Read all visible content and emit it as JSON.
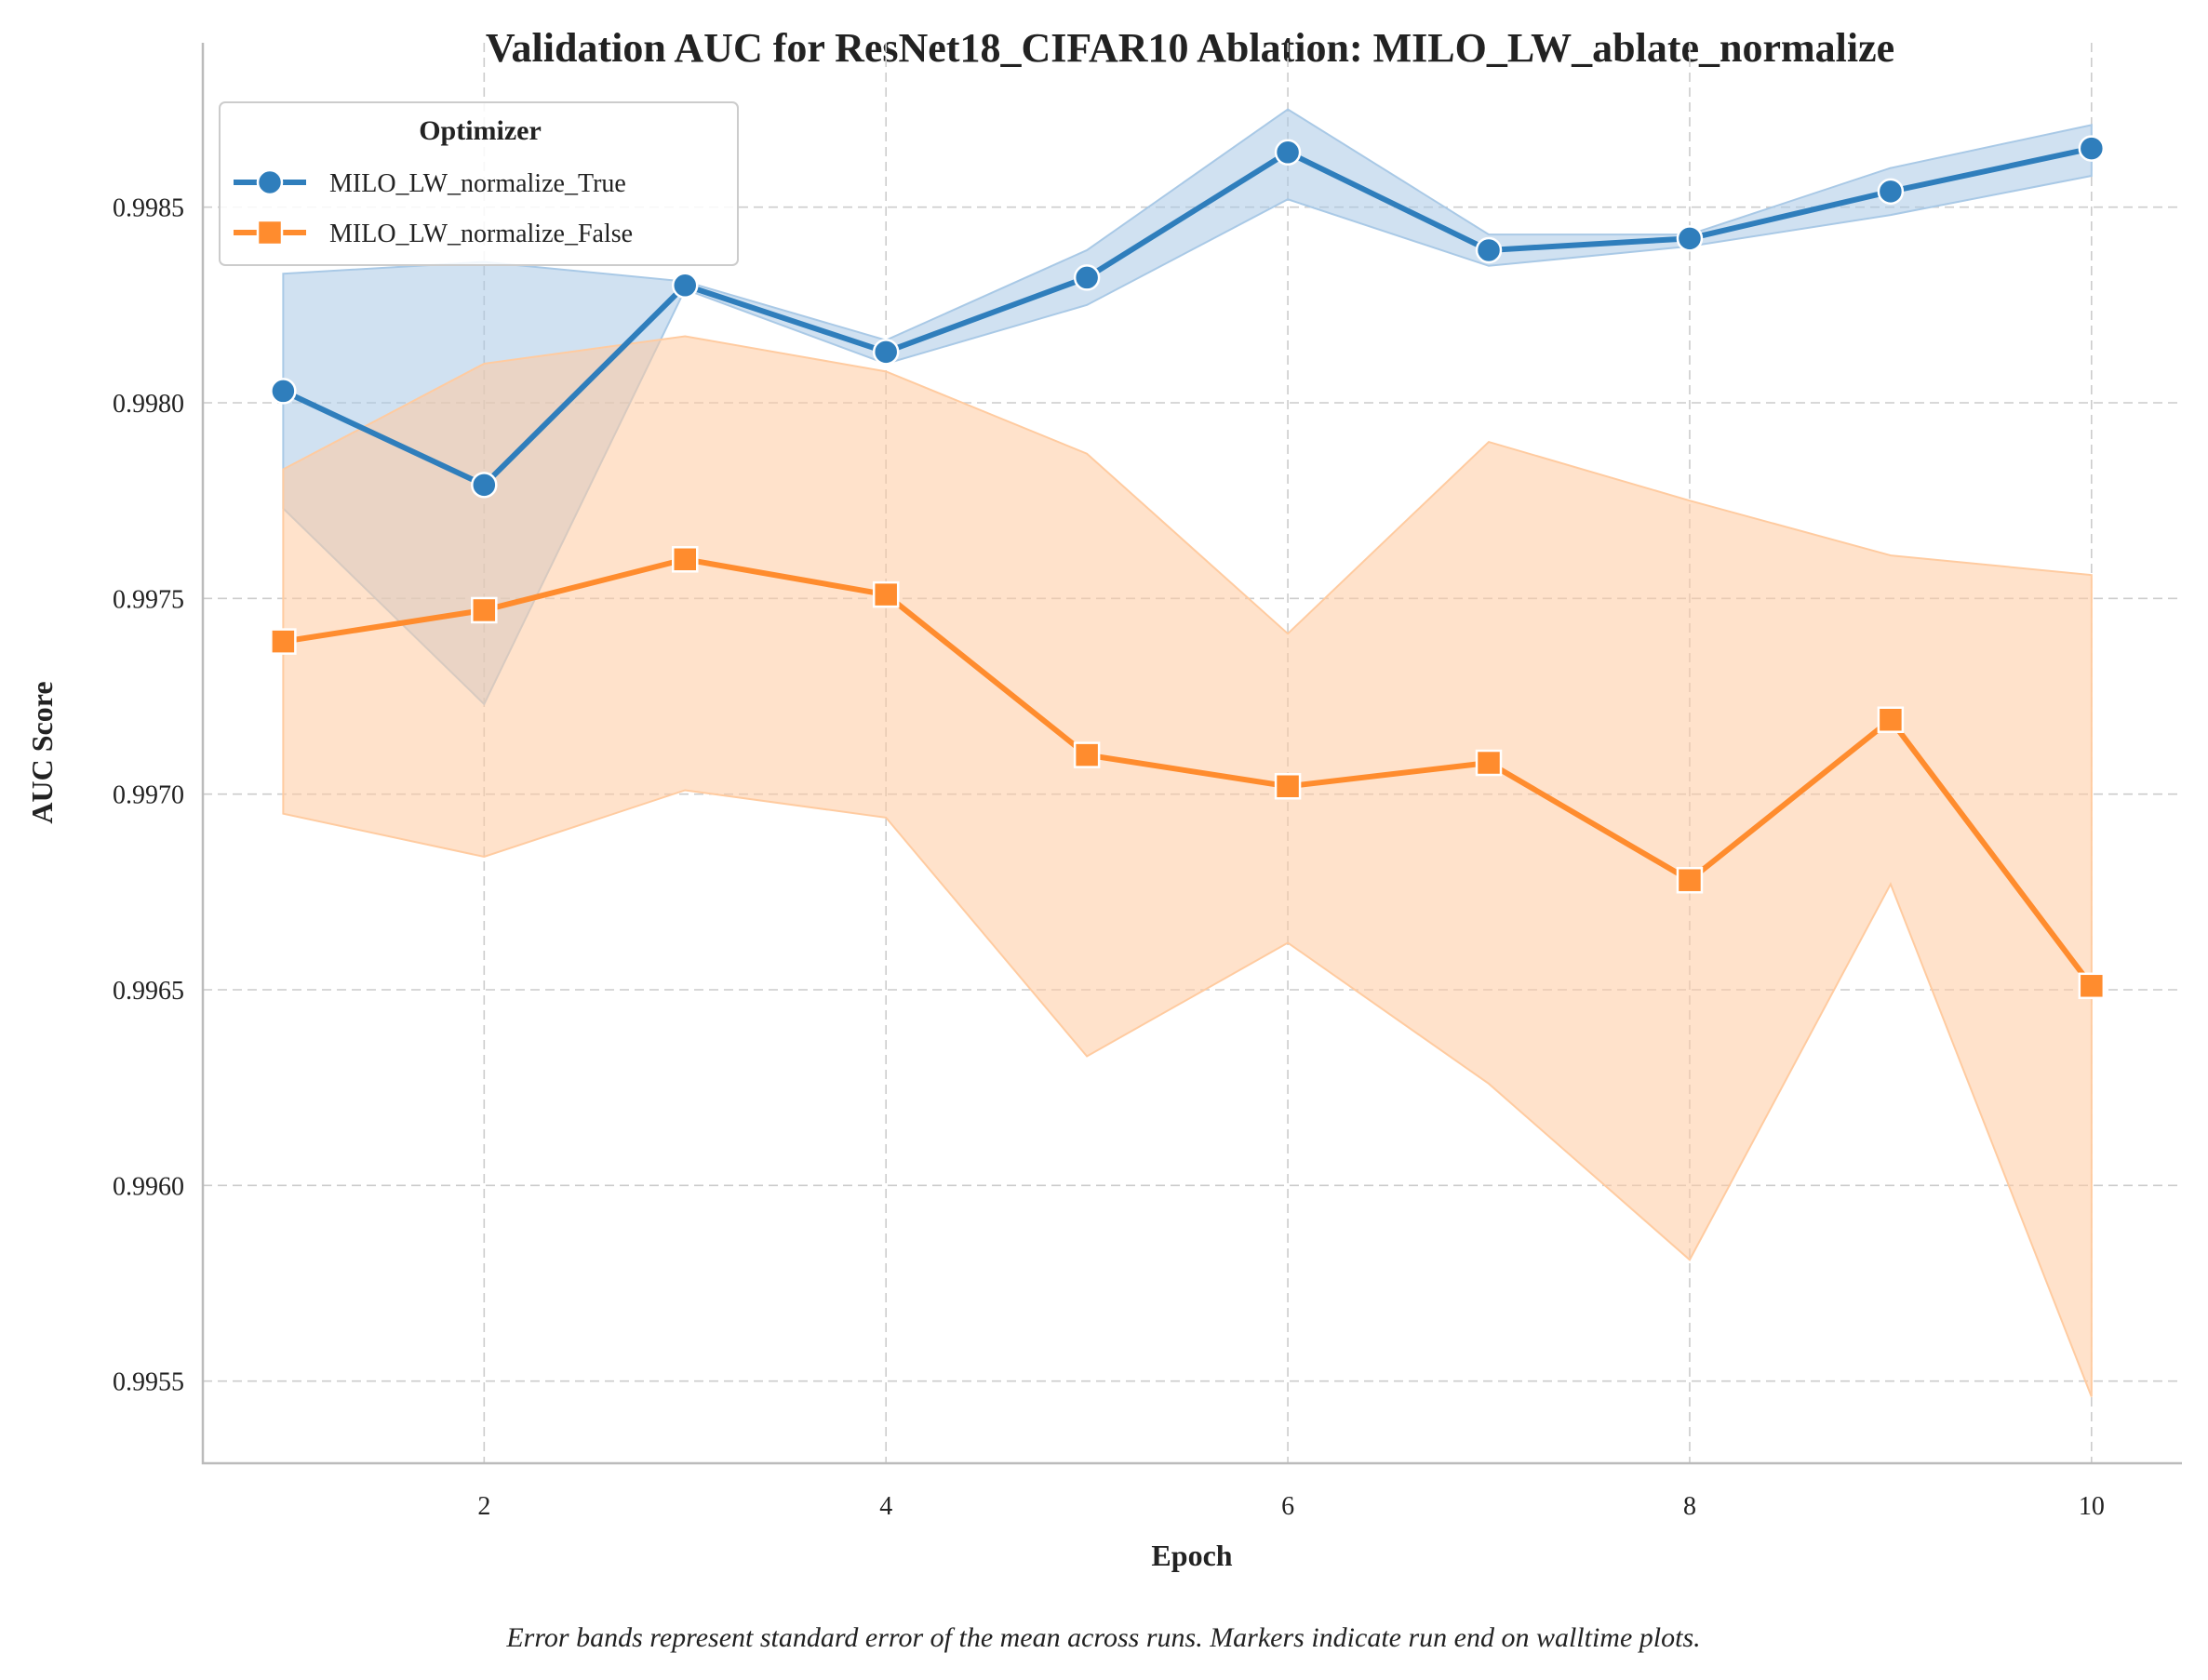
{
  "chart_data": {
    "type": "line",
    "title": "Validation AUC for ResNet18_CIFAR10 Ablation: MILO_LW_ablate_normalize",
    "xlabel": "Epoch",
    "ylabel": "AUC Score",
    "caption": "Error bands represent standard error of the mean across runs. Markers indicate run end on walltime plots.",
    "legend_title": "Optimizer",
    "legend_position": "top-left",
    "grid": true,
    "xlim": [
      0.6,
      10.45
    ],
    "ylim": [
      0.99529,
      0.99892
    ],
    "xticks": [
      2,
      4,
      6,
      8,
      10
    ],
    "yticks": [
      0.9955,
      0.996,
      0.9965,
      0.997,
      0.9975,
      0.998,
      0.9985
    ],
    "ytick_labels": [
      "0.9955",
      "0.9960",
      "0.9965",
      "0.9970",
      "0.9975",
      "0.9980",
      "0.9985"
    ],
    "x": [
      1,
      2,
      3,
      4,
      5,
      6,
      7,
      8,
      9,
      10
    ],
    "series": [
      {
        "name": "MILO_LW_normalize_True",
        "color": "#2f7ebc",
        "band_color": "#a9c9e6",
        "marker": "circle",
        "values": [
          0.99803,
          0.99779,
          0.9983,
          0.99813,
          0.99832,
          0.99864,
          0.99839,
          0.99842,
          0.99854,
          0.99865
        ],
        "lower": [
          0.99773,
          0.99723,
          0.99829,
          0.9981,
          0.99825,
          0.99852,
          0.99835,
          0.9984,
          0.99848,
          0.99858
        ],
        "upper": [
          0.99833,
          0.99836,
          0.99831,
          0.99816,
          0.99839,
          0.99875,
          0.99843,
          0.99843,
          0.9986,
          0.99871
        ]
      },
      {
        "name": "MILO_LW_normalize_False",
        "color": "#ff8c2e",
        "band_color": "#ffcba0",
        "marker": "square",
        "values": [
          0.99739,
          0.99747,
          0.9976,
          0.99751,
          0.9971,
          0.99702,
          0.99708,
          0.99678,
          0.99719,
          0.99651
        ],
        "lower": [
          0.99695,
          0.99684,
          0.99701,
          0.99694,
          0.99633,
          0.99662,
          0.99626,
          0.99581,
          0.99677,
          0.99546
        ],
        "upper": [
          0.99783,
          0.9981,
          0.99817,
          0.99808,
          0.99787,
          0.99741,
          0.9979,
          0.99775,
          0.99761,
          0.99756
        ]
      }
    ]
  }
}
